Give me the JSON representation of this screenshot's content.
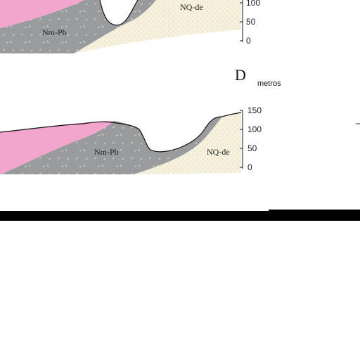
{
  "colors": {
    "pink_unit": "#f3a6cd",
    "gray_unit": "#9a9b9d",
    "sand_unit": "#f6f1dd",
    "outline": "#111111",
    "band": "#000000"
  },
  "upper_section": {
    "unit_gray": "Nm-Pb",
    "unit_sand": "NQ-de",
    "scale_ticks": [
      "100",
      "50",
      "0"
    ]
  },
  "divider": {
    "letter": "D",
    "units": "metros"
  },
  "lower_section": {
    "unit_gray": "Nm-Pb",
    "unit_sand": "NQ-de",
    "scale_ticks": [
      "150",
      "100",
      "50",
      "0"
    ]
  }
}
